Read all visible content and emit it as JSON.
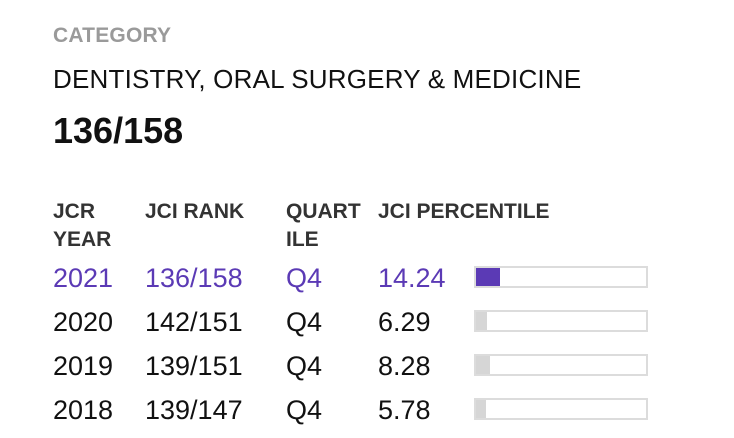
{
  "header": {
    "category_label": "CATEGORY",
    "category_name": "DENTISTRY, ORAL SURGERY & MEDICINE",
    "rank": "136/158"
  },
  "table": {
    "headers": {
      "year": "JCR YEAR",
      "rank": "JCI RANK",
      "quartile": "QUART ILE",
      "percentile": "JCI PERCENTILE"
    },
    "rows": [
      {
        "year": "2021",
        "rank": "136/158",
        "quartile": "Q4",
        "percentile": "14.24",
        "percentile_value": 14.24,
        "highlight": true
      },
      {
        "year": "2020",
        "rank": "142/151",
        "quartile": "Q4",
        "percentile": "6.29",
        "percentile_value": 6.29,
        "highlight": false
      },
      {
        "year": "2019",
        "rank": "139/151",
        "quartile": "Q4",
        "percentile": "8.28",
        "percentile_value": 8.28,
        "highlight": false
      },
      {
        "year": "2018",
        "rank": "139/147",
        "quartile": "Q4",
        "percentile": "5.78",
        "percentile_value": 5.78,
        "highlight": false
      }
    ]
  },
  "colors": {
    "highlight": "#5b3ab5",
    "bar_fill": "#d6d6d6",
    "bar_border": "#dcdcdc"
  }
}
